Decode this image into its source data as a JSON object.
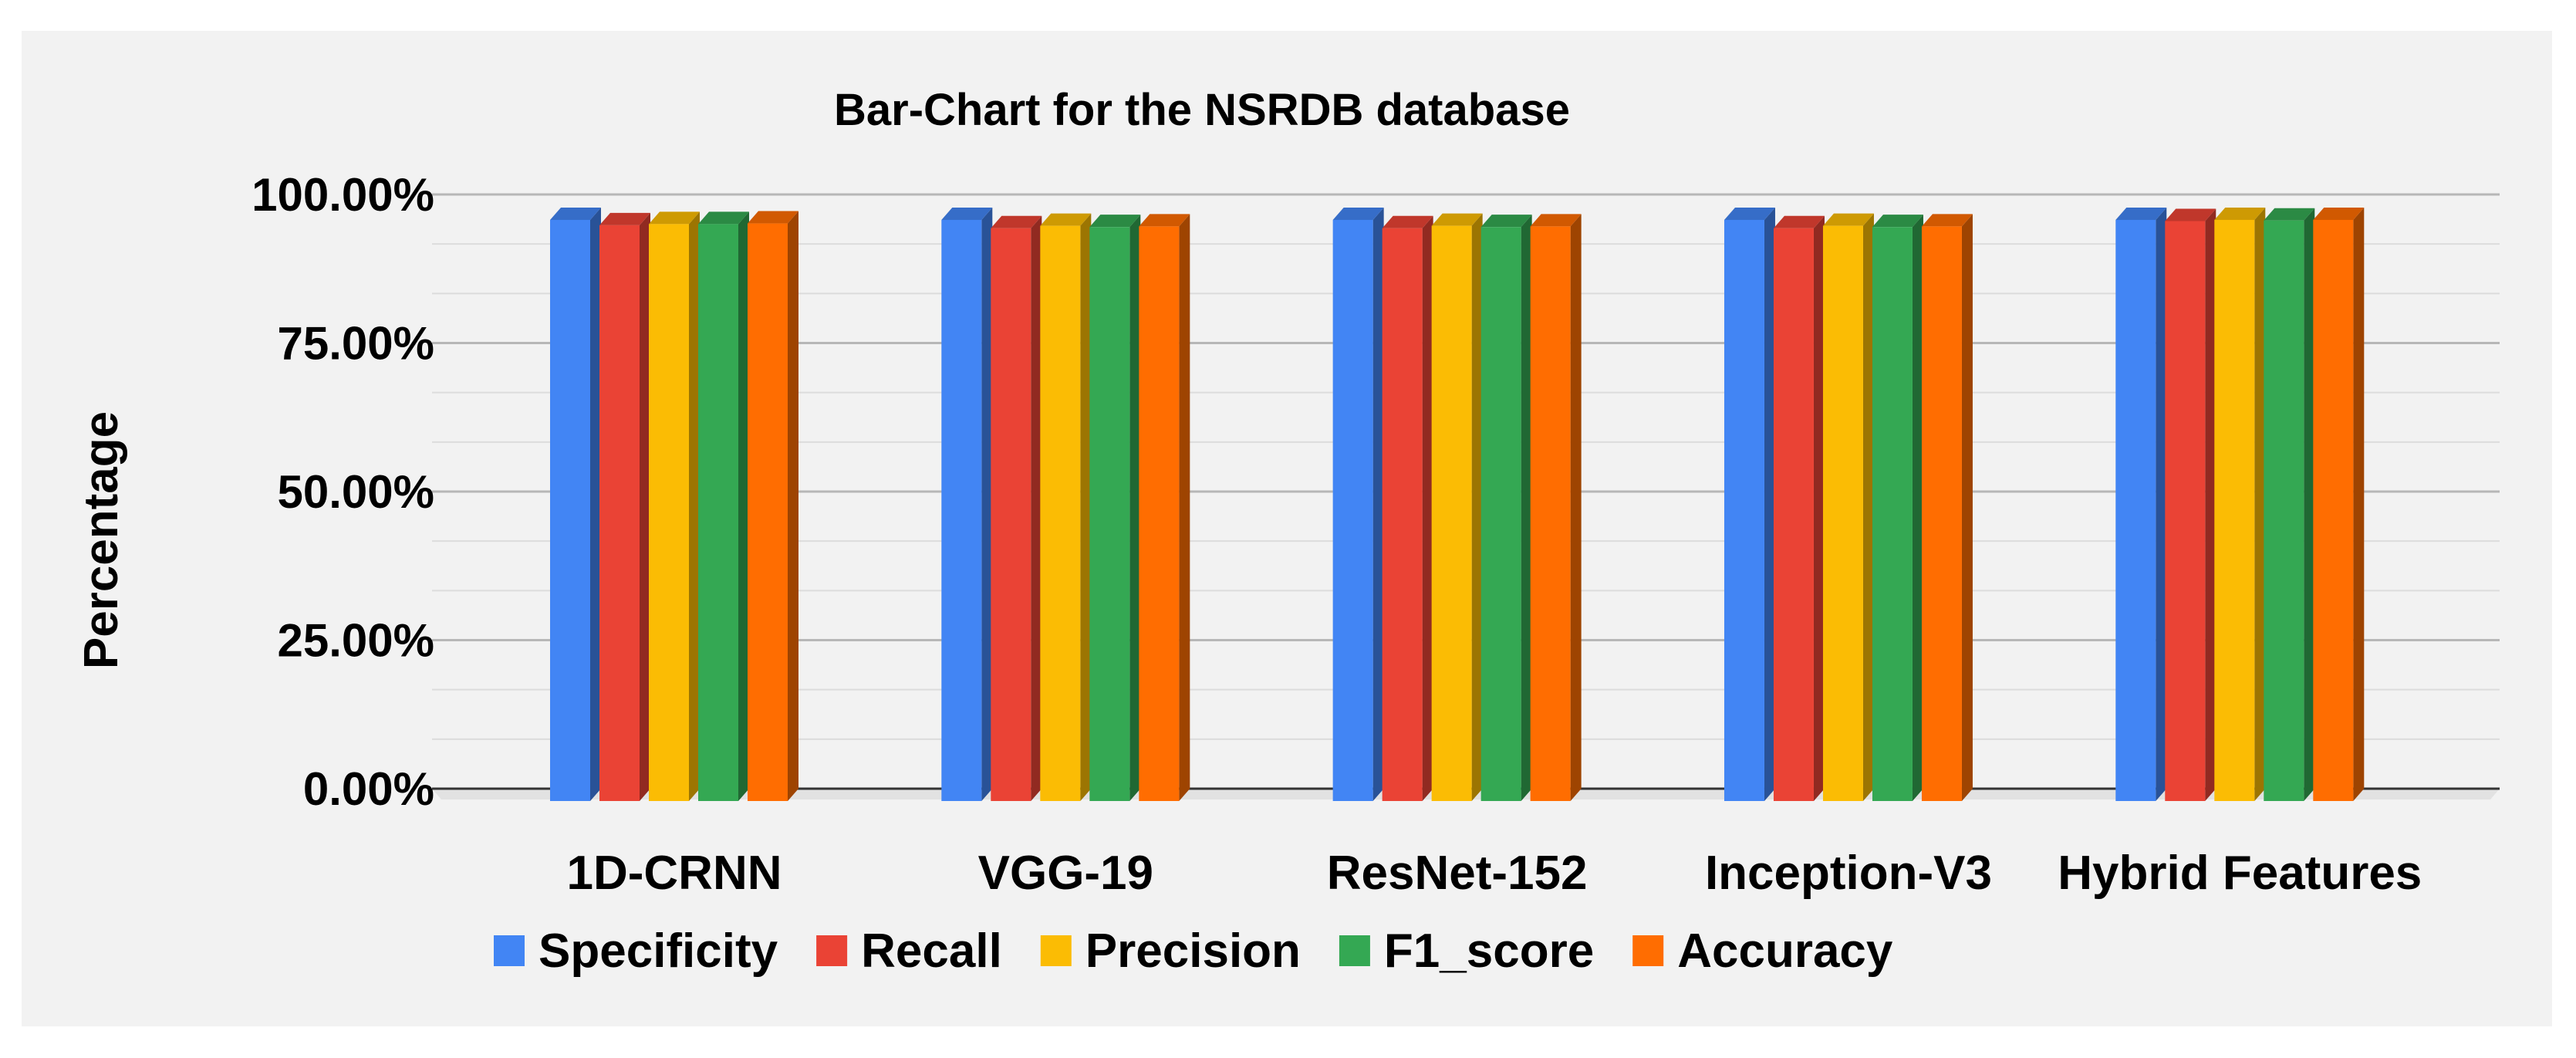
{
  "chart_data": {
    "type": "bar",
    "title": "Bar-Chart for the NSRDB database",
    "xlabel": "",
    "ylabel": "Percentage",
    "ylim": [
      0,
      100
    ],
    "yticks": [
      "0.00%",
      "25.00%",
      "50.00%",
      "75.00%",
      "100.00%"
    ],
    "ytick_values": [
      0,
      25,
      50,
      75,
      100
    ],
    "categories": [
      "1D-CRNN",
      "VGG-19",
      "ResNet-152",
      "Inception-V3",
      "Hybrid Features"
    ],
    "series": [
      {
        "name": "Specificity",
        "color": "#4285f4",
        "values": [
          97.8,
          97.8,
          97.8,
          97.8,
          97.8
        ]
      },
      {
        "name": "Recall",
        "color": "#ea4335",
        "values": [
          96.9,
          96.4,
          96.4,
          96.4,
          97.6
        ]
      },
      {
        "name": "Precision",
        "color": "#fbbc04",
        "values": [
          97.1,
          96.8,
          96.8,
          96.8,
          97.8
        ]
      },
      {
        "name": "F1_score",
        "color": "#34a853",
        "values": [
          97.1,
          96.6,
          96.6,
          96.6,
          97.7
        ]
      },
      {
        "name": "Accuracy",
        "color": "#ff6d01",
        "values": [
          97.2,
          96.7,
          96.7,
          96.7,
          97.8
        ]
      }
    ],
    "grid": true,
    "legend_position": "bottom"
  }
}
